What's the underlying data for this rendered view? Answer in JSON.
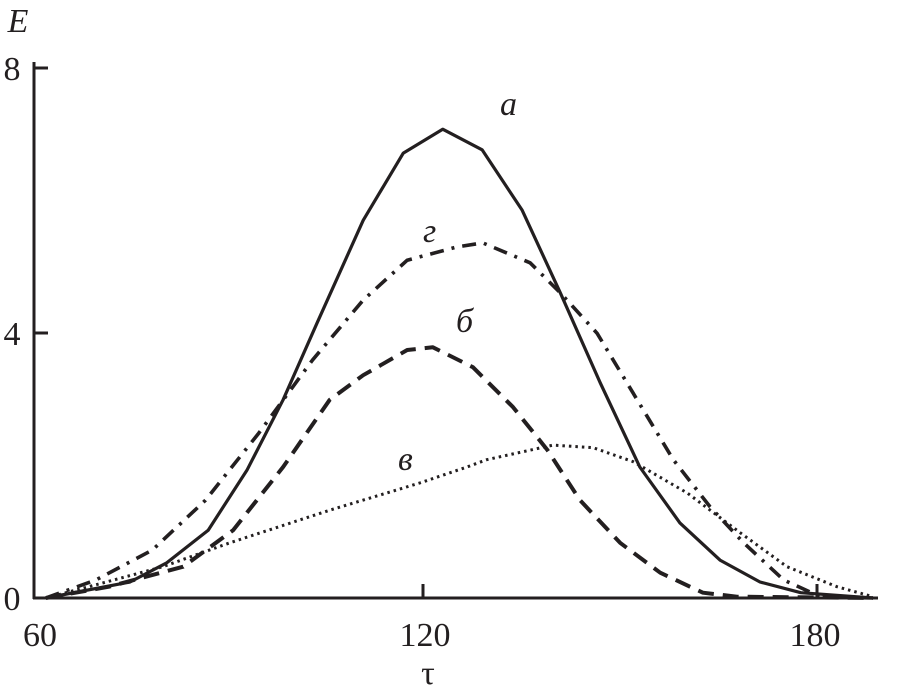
{
  "chart_data": {
    "type": "line",
    "title": "",
    "xlabel": "τ",
    "ylabel": "E",
    "xlim": [
      60,
      190
    ],
    "ylim": [
      0,
      8
    ],
    "x_ticks": [
      "60",
      "120",
      "180"
    ],
    "y_ticks": [
      "0",
      "4",
      "8"
    ],
    "grid": false,
    "legend": "none (curves labelled inline)",
    "line_color": "#231f20",
    "series": [
      {
        "name": "а",
        "style": "solid",
        "points": [
          [
            62.6,
            0
          ],
          [
            75.4,
            0.24
          ],
          [
            81,
            0.53
          ],
          [
            87.3,
            1.02
          ],
          [
            93.2,
            1.92
          ],
          [
            98.7,
            2.98
          ],
          [
            103.9,
            4.14
          ],
          [
            110.9,
            5.68
          ],
          [
            117,
            6.69
          ],
          [
            123,
            7.05
          ],
          [
            129,
            6.74
          ],
          [
            135.1,
            5.83
          ],
          [
            140.9,
            4.59
          ],
          [
            147,
            3.23
          ],
          [
            153,
            1.97
          ],
          [
            159.1,
            1.13
          ],
          [
            165.2,
            0.57
          ],
          [
            171.3,
            0.24
          ],
          [
            177.5,
            0.08
          ],
          [
            188.5,
            0
          ]
        ]
      },
      {
        "name": "б",
        "style": "dashed",
        "points": [
          [
            62.6,
            0
          ],
          [
            72.2,
            0.17
          ],
          [
            83.5,
            0.47
          ],
          [
            91.1,
            1.02
          ],
          [
            98.7,
            1.97
          ],
          [
            105.8,
            2.98
          ],
          [
            110.9,
            3.35
          ],
          [
            117.6,
            3.73
          ],
          [
            121.5,
            3.77
          ],
          [
            127.6,
            3.47
          ],
          [
            133.7,
            2.87
          ],
          [
            138.9,
            2.23
          ],
          [
            143.9,
            1.47
          ],
          [
            150,
            0.83
          ],
          [
            156.1,
            0.38
          ],
          [
            162.6,
            0.08
          ],
          [
            167.8,
            0.02
          ],
          [
            188.5,
            0
          ]
        ]
      },
      {
        "name": "в",
        "style": "dotted",
        "points": [
          [
            62.6,
            0
          ],
          [
            71,
            0.22
          ],
          [
            80.4,
            0.47
          ],
          [
            90.6,
            0.83
          ],
          [
            105.8,
            1.32
          ],
          [
            119.5,
            1.73
          ],
          [
            126.7,
            1.97
          ],
          [
            129.7,
            2.08
          ],
          [
            139.8,
            2.3
          ],
          [
            145.9,
            2.26
          ],
          [
            152,
            2.05
          ],
          [
            160.2,
            1.58
          ],
          [
            168.3,
            0.98
          ],
          [
            175.4,
            0.47
          ],
          [
            183,
            0.17
          ],
          [
            188.5,
            0.02
          ]
        ]
      },
      {
        "name": "г",
        "style": "dash-dot",
        "points": [
          [
            62.6,
            0
          ],
          [
            70.2,
            0.27
          ],
          [
            78.8,
            0.72
          ],
          [
            86.9,
            1.47
          ],
          [
            95,
            2.48
          ],
          [
            103.2,
            3.58
          ],
          [
            110.9,
            4.48
          ],
          [
            117.6,
            5.08
          ],
          [
            125.2,
            5.28
          ],
          [
            129.1,
            5.34
          ],
          [
            136.3,
            5.04
          ],
          [
            140.9,
            4.59
          ],
          [
            146.5,
            3.98
          ],
          [
            152,
            3.08
          ],
          [
            158.1,
            2.08
          ],
          [
            163.7,
            1.37
          ],
          [
            168.8,
            0.83
          ],
          [
            174.9,
            0.27
          ],
          [
            180.5,
            0.02
          ],
          [
            188.5,
            0
          ]
        ]
      }
    ]
  }
}
